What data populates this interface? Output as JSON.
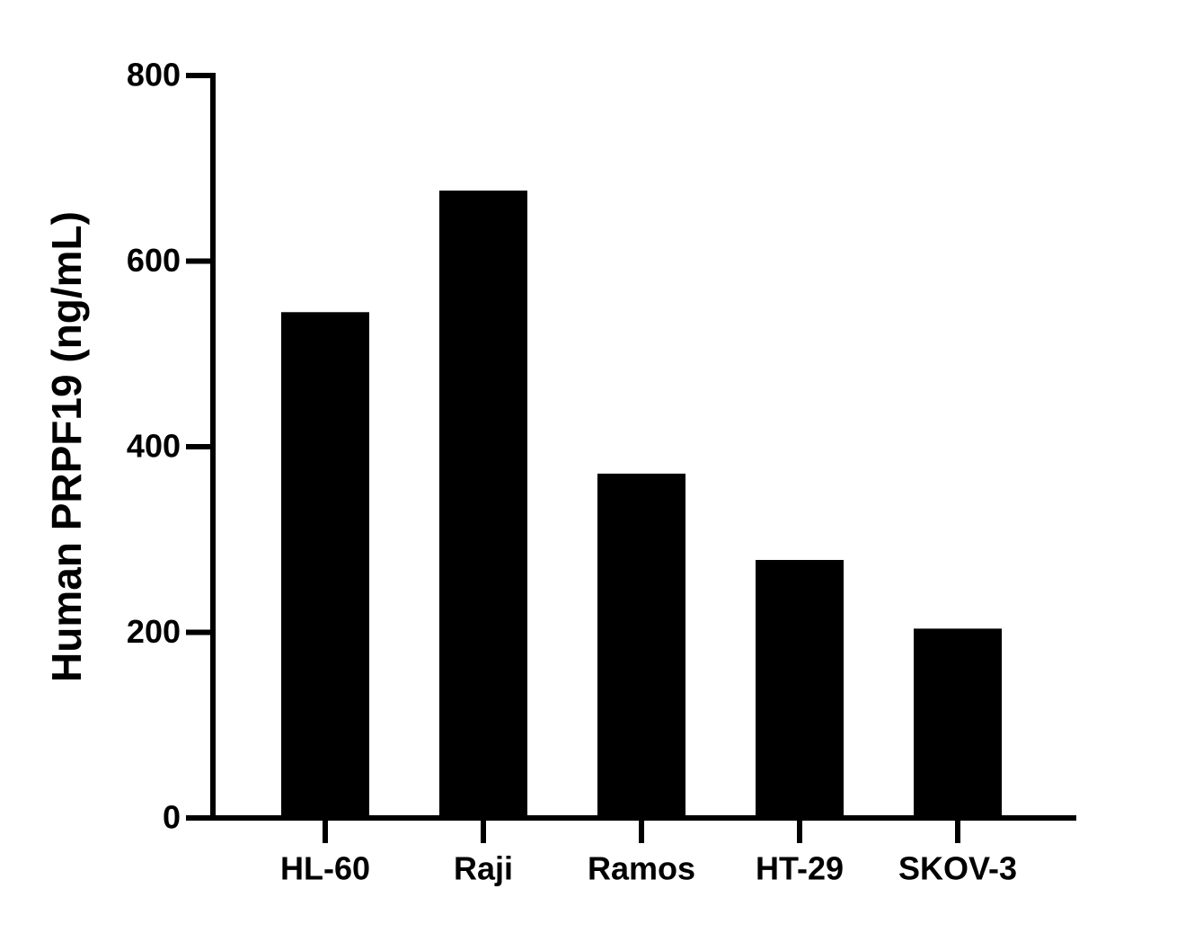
{
  "chart_data": {
    "type": "bar",
    "y_label": "Human PRPF19 (ng/mL)",
    "categories": [
      "HL-60",
      "Raji",
      "Ramos",
      "HT-29",
      "SKOV-3"
    ],
    "values": [
      545,
      676,
      371,
      278,
      204
    ],
    "color": "#000000",
    "ylim": [
      0,
      800
    ],
    "yticks": [
      0,
      200,
      400,
      600,
      800
    ]
  }
}
